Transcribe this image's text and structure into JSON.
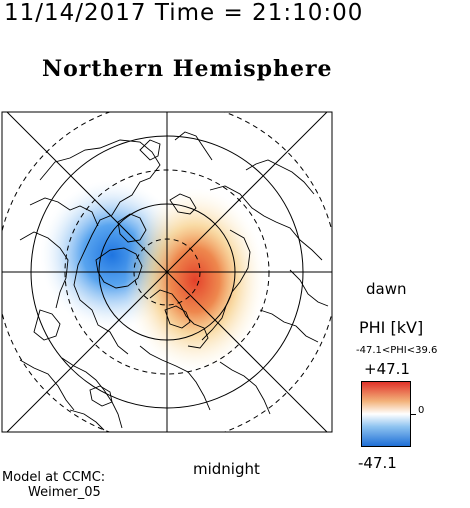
{
  "header": {
    "timestamp": "11/14/2017 Time = 21:10:00",
    "title": "Northern Hemisphere"
  },
  "orientation": {
    "dawn_label": "dawn",
    "midnight_label": "midnight"
  },
  "colorbar": {
    "title": "PHI [kV]",
    "range_text": "-47.1<PHI<39.6",
    "max_label": "+47.1",
    "min_label": "-47.1",
    "zero_label": "0",
    "colors": {
      "positive": "#e0332a",
      "negative": "#1f6fd6",
      "neutral": "#ffffff"
    }
  },
  "credit": {
    "line1": "Model at CCMC:",
    "line2": "Weimer_05"
  }
}
